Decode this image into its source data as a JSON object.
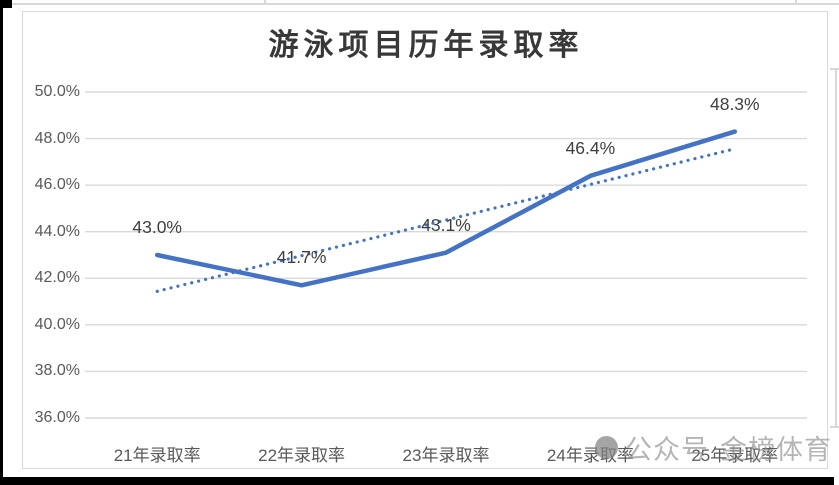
{
  "watermark": {
    "prefix": "公众号",
    "name": "金榜体育"
  },
  "colors": {
    "series_line": "#4472C4",
    "trend_line": "#4472C4",
    "gridline": "#D9D9D9",
    "data_label": "#3F3F3F",
    "axis_text": "#595959",
    "title_text": "#383838"
  },
  "chart_data": {
    "type": "line",
    "title": "游泳项目历年录取率",
    "categories": [
      "21年录取率",
      "22年录取率",
      "23年录取率",
      "24年录取率",
      "25年录取率"
    ],
    "series": [
      {
        "name": "录取率",
        "style": "solid",
        "values": [
          43.0,
          41.7,
          43.1,
          46.4,
          48.3
        ]
      }
    ],
    "data_labels": [
      "43.0%",
      "41.7%",
      "43.1%",
      "46.4%",
      "48.3%"
    ],
    "trendline": {
      "type": "linear",
      "style": "dotted",
      "start": 41.44,
      "end": 47.56
    },
    "y_axis": {
      "min": 36.0,
      "max": 50.0,
      "step": 2.0,
      "tick_labels": [
        "50.0%",
        "48.0%",
        "46.0%",
        "44.0%",
        "42.0%",
        "40.0%",
        "38.0%",
        "36.0%"
      ]
    },
    "x_axis": {
      "tick_labels_visible": true
    },
    "grid": "horizontal",
    "legend": "none"
  }
}
